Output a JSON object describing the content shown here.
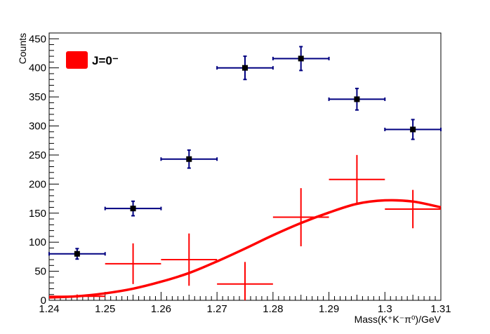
{
  "chart_data": {
    "type": "scatter",
    "xlabel": "Mass(K⁺K⁻π⁰)/GeV",
    "ylabel": "Counts",
    "xlim": [
      1.24,
      1.31
    ],
    "ylim": [
      0,
      460
    ],
    "x_ticks": [
      "1.24",
      "1.25",
      "1.26",
      "1.27",
      "1.28",
      "1.29",
      "1.3",
      "1.31"
    ],
    "y_ticks": [
      "0",
      "50",
      "100",
      "150",
      "200",
      "250",
      "300",
      "350",
      "400",
      "450"
    ],
    "grid": false,
    "legend": {
      "position": "top-left",
      "entries": [
        {
          "label": "J=0⁻",
          "color": "#ff0000"
        }
      ]
    },
    "series": [
      {
        "color": "#000080",
        "marker": "square",
        "points": [
          {
            "x": 1.245,
            "y": 80,
            "xerr": 0.005,
            "yerr": 9
          },
          {
            "x": 1.255,
            "y": 158,
            "xerr": 0.005,
            "yerr": 12.5
          },
          {
            "x": 1.265,
            "y": 243,
            "xerr": 0.005,
            "yerr": 15.5
          },
          {
            "x": 1.275,
            "y": 400,
            "xerr": 0.005,
            "yerr": 20
          },
          {
            "x": 1.285,
            "y": 416,
            "xerr": 0.005,
            "yerr": 20.5
          },
          {
            "x": 1.295,
            "y": 346,
            "xerr": 0.005,
            "yerr": 18.5
          },
          {
            "x": 1.305,
            "y": 294,
            "xerr": 0.005,
            "yerr": 17
          }
        ]
      },
      {
        "color": "#ff0000",
        "marker": "none",
        "points": [
          {
            "x": 1.245,
            "y": 7,
            "xerr": 0.005,
            "yerr": 3
          },
          {
            "x": 1.255,
            "y": 63,
            "xerr": 0.005,
            "yerr": 35
          },
          {
            "x": 1.265,
            "y": 70,
            "xerr": 0.005,
            "yerr": 45
          },
          {
            "x": 1.275,
            "y": 28,
            "xerr": 0.005,
            "yerr": 38
          },
          {
            "x": 1.285,
            "y": 143,
            "xerr": 0.005,
            "yerr": 50
          },
          {
            "x": 1.295,
            "y": 208,
            "xerr": 0.005,
            "yerr": 42
          },
          {
            "x": 1.305,
            "y": 157,
            "xerr": 0.005,
            "yerr": 33
          }
        ]
      },
      {
        "color": "#ff0000",
        "line": "smooth",
        "x": [
          1.24,
          1.245,
          1.25,
          1.255,
          1.26,
          1.265,
          1.27,
          1.275,
          1.28,
          1.285,
          1.29,
          1.295,
          1.3,
          1.305,
          1.31
        ],
        "y": [
          5,
          7,
          12,
          20,
          32,
          47,
          67,
          89,
          112,
          133,
          151,
          166,
          172,
          170,
          160
        ]
      }
    ]
  }
}
